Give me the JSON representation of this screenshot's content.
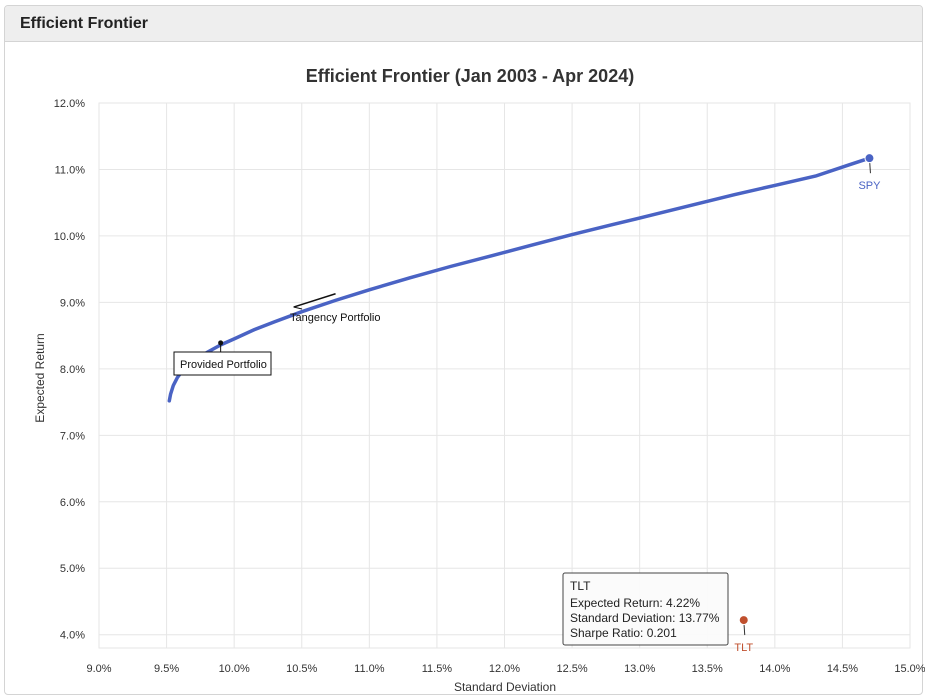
{
  "panel": {
    "title": "Efficient Frontier"
  },
  "chart_data": {
    "type": "line",
    "title": "Efficient Frontier (Jan 2003 - Apr 2024)",
    "xlabel": "Standard Deviation",
    "ylabel": "Expected Return",
    "xlim": [
      9.0,
      15.0
    ],
    "ylim": [
      3.8,
      12.0
    ],
    "x_ticks": [
      9.0,
      9.5,
      10.0,
      10.5,
      11.0,
      11.5,
      12.0,
      12.5,
      13.0,
      13.5,
      14.0,
      14.5,
      15.0
    ],
    "y_ticks": [
      4.0,
      5.0,
      6.0,
      7.0,
      8.0,
      9.0,
      10.0,
      11.0,
      12.0
    ],
    "tick_suffix": "%",
    "grid": true,
    "series": [
      {
        "name": "",
        "color": "#4a63c4",
        "x": [
          9.52,
          9.53,
          9.55,
          9.58,
          9.62,
          9.68,
          9.75,
          9.82,
          9.9,
          10.0,
          10.15,
          10.3,
          10.5,
          10.75,
          11.0,
          11.3,
          11.6,
          11.9,
          12.2,
          12.5,
          12.8,
          13.1,
          13.4,
          13.7,
          14.0,
          14.3,
          14.55,
          14.7
        ],
        "y": [
          7.52,
          7.62,
          7.75,
          7.87,
          7.98,
          8.09,
          8.19,
          8.27,
          8.36,
          8.45,
          8.59,
          8.71,
          8.86,
          9.03,
          9.19,
          9.37,
          9.54,
          9.7,
          9.86,
          10.02,
          10.17,
          10.32,
          10.47,
          10.62,
          10.76,
          10.9,
          11.07,
          11.17
        ]
      }
    ],
    "points": [
      {
        "label": "SPY",
        "x": 14.7,
        "y": 11.17,
        "color": "#4a63c4"
      },
      {
        "label": "TLT",
        "x": 13.77,
        "y": 4.22,
        "color": "#c0502e"
      }
    ],
    "annotations": [
      {
        "label": "Tangency Portfolio",
        "x": 10.75,
        "y": 9.13
      },
      {
        "label": "Provided Portfolio",
        "x": 9.9,
        "y": 8.39
      }
    ],
    "tooltip": {
      "title": "TLT",
      "lines": [
        "Expected Return: 4.22%",
        "Standard Deviation: 13.77%",
        "Sharpe Ratio: 0.201"
      ]
    }
  }
}
